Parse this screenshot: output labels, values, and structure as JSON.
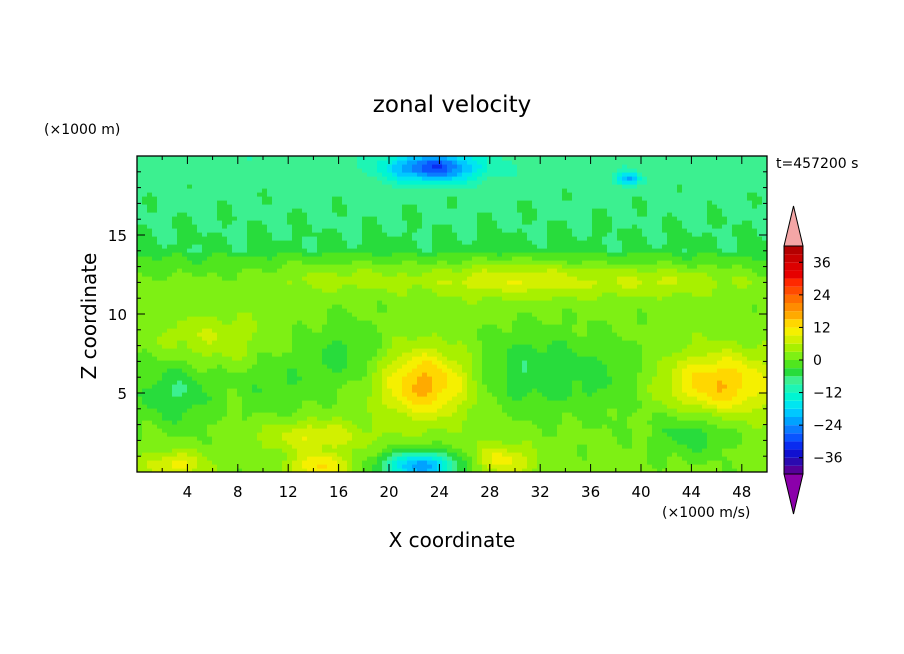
{
  "chart_data": {
    "type": "heatmap",
    "title": "zonal velocity",
    "xlabel": "X coordinate",
    "ylabel": "Z coordinate",
    "y_unit": "(×1000 m)",
    "colorbar_unit": "(×1000 m/s)",
    "time_label": "t=457200 s",
    "xlim": [
      0,
      50
    ],
    "ylim": [
      0,
      20
    ],
    "x_ticks": [
      4,
      8,
      12,
      16,
      20,
      24,
      28,
      32,
      36,
      40,
      44,
      48
    ],
    "y_ticks": [
      5,
      10,
      15
    ],
    "colorbar": {
      "levels": [
        -42,
        -39,
        -36,
        -33,
        -30,
        -27,
        -24,
        -21,
        -18,
        -15,
        -12,
        -9,
        -6,
        -3,
        0,
        3,
        6,
        9,
        12,
        15,
        18,
        21,
        24,
        27,
        30,
        33,
        36,
        39,
        42
      ],
      "colors": [
        "#550099",
        "#2b0ab0",
        "#1010d0",
        "#0a2cf0",
        "#0a55ff",
        "#0a7cff",
        "#00a2ff",
        "#00c8ff",
        "#00e6f0",
        "#00f5d2",
        "#1ef5b4",
        "#3cf090",
        "#28dc3c",
        "#50e61e",
        "#7ef014",
        "#a8f000",
        "#d2f000",
        "#f5f000",
        "#ffd700",
        "#ffaa00",
        "#ff8c00",
        "#ff6e00",
        "#ff4b00",
        "#ff2800",
        "#e60000",
        "#dc0000",
        "#c80000",
        "#b40000"
      ],
      "over_color": "#f4a6a6",
      "under_color": "#8b00aa",
      "tick_labels": [
        36,
        24,
        12,
        0,
        -12,
        -24,
        -36
      ]
    },
    "features": [
      {
        "x": 22.8,
        "z": 5.6,
        "value": 15,
        "sx": 3.6,
        "sz": 2.2
      },
      {
        "x": 46.3,
        "z": 5.6,
        "value": 14,
        "sx": 4.4,
        "sz": 2.0
      },
      {
        "x": 30,
        "z": 12.3,
        "value": 8,
        "sx": 7,
        "sz": 1.2
      },
      {
        "x": 42,
        "z": 12.2,
        "value": 5,
        "sx": 6,
        "sz": 1.0
      },
      {
        "x": 16,
        "z": 12.5,
        "value": 4,
        "sx": 6,
        "sz": 1.0
      },
      {
        "x": 6,
        "z": 8.5,
        "value": 5,
        "sx": 4,
        "sz": 1.5
      },
      {
        "x": 14,
        "z": 2.3,
        "value": 8,
        "sx": 4,
        "sz": 1.0
      },
      {
        "x": 14.5,
        "z": 0.4,
        "value": 11,
        "sx": 2.5,
        "sz": 0.8
      },
      {
        "x": 3,
        "z": 0.5,
        "value": 9,
        "sx": 2.5,
        "sz": 0.8
      },
      {
        "x": 29,
        "z": 0.8,
        "value": 9,
        "sx": 2.5,
        "sz": 1.0
      },
      {
        "x": 3,
        "z": 5,
        "value": -7,
        "sx": 3,
        "sz": 2.0
      },
      {
        "x": 11,
        "z": 5.5,
        "value": -4,
        "sx": 3,
        "sz": 2.0
      },
      {
        "x": 16.5,
        "z": 7.5,
        "value": -5,
        "sx": 3,
        "sz": 2.2
      },
      {
        "x": 31,
        "z": 6.5,
        "value": -6,
        "sx": 4,
        "sz": 2.5
      },
      {
        "x": 37,
        "z": 6,
        "value": -4,
        "sx": 4,
        "sz": 2.5
      },
      {
        "x": 44,
        "z": 2.5,
        "value": -6,
        "sx": 3,
        "sz": 1.5
      },
      {
        "x": 22.5,
        "z": 0.4,
        "value": -24,
        "sx": 3,
        "sz": 0.9
      },
      {
        "x": 23.5,
        "z": 19.3,
        "value": -22,
        "sx": 3.5,
        "sz": 0.9
      },
      {
        "x": 39,
        "z": 18.6,
        "value": -14,
        "sx": 1,
        "sz": 0.4
      }
    ]
  }
}
